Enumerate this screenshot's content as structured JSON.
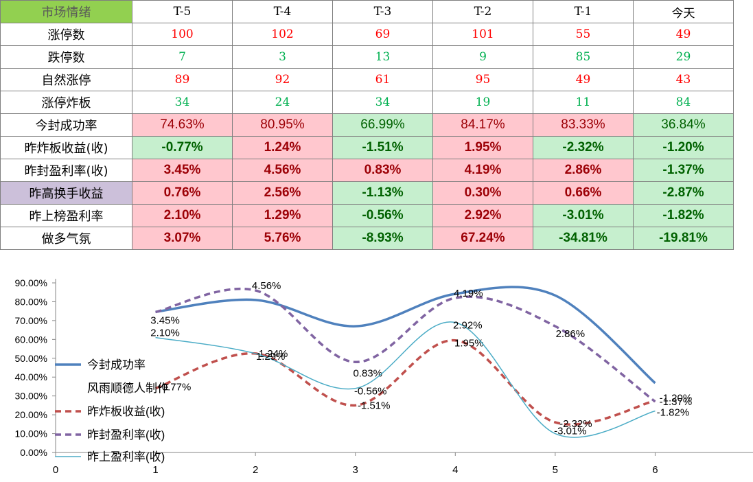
{
  "table": {
    "header": [
      "市场情绪",
      "T-5",
      "T-4",
      "T-3",
      "T-2",
      "T-1",
      "今天"
    ],
    "rows": [
      {
        "label": "涨停数",
        "values": [
          "100",
          "102",
          "69",
          "101",
          "55",
          "49"
        ]
      },
      {
        "label": "跌停数",
        "values": [
          "7",
          "3",
          "13",
          "9",
          "85",
          "29"
        ]
      },
      {
        "label": "自然涨停",
        "values": [
          "89",
          "92",
          "61",
          "95",
          "49",
          "43"
        ]
      },
      {
        "label": "涨停炸板",
        "values": [
          "34",
          "24",
          "34",
          "19",
          "11",
          "84"
        ]
      },
      {
        "label": "今封成功率",
        "values": [
          "74.63%",
          "80.95%",
          "66.99%",
          "84.17%",
          "83.33%",
          "36.84%"
        ]
      },
      {
        "label": "昨炸板收益(收)",
        "values": [
          "-0.77%",
          "1.24%",
          "-1.51%",
          "1.95%",
          "-2.32%",
          "-1.20%"
        ]
      },
      {
        "label": "昨封盈利率(收)",
        "values": [
          "3.45%",
          "4.56%",
          "0.83%",
          "4.19%",
          "2.86%",
          "-1.37%"
        ]
      },
      {
        "label": "昨高换手收益",
        "values": [
          "0.76%",
          "2.56%",
          "-1.13%",
          "0.30%",
          "0.66%",
          "-2.87%"
        ]
      },
      {
        "label": "昨上榜盈利率",
        "values": [
          "2.10%",
          "1.29%",
          "-0.56%",
          "2.92%",
          "-3.01%",
          "-1.82%"
        ]
      },
      {
        "label": "做多气氛",
        "values": [
          "3.07%",
          "5.76%",
          "-8.93%",
          "67.24%",
          "-34.81%",
          "-19.81%"
        ]
      }
    ],
    "watermark": "风雨顺德人"
  },
  "colors": {
    "header_green": "#92d050",
    "header_purple": "#ccc0da",
    "red_text": "#ff0000",
    "green_text": "#00b050",
    "pink_fill": "#ffc7ce",
    "pink_text": "#9c0006",
    "green_fill": "#c6efce",
    "green_fill_text": "#006100",
    "series_success": "#4f81bd",
    "series_blast": "#c0504d",
    "series_seal": "#8064a2",
    "series_board": "#4bacc6"
  },
  "chart_data": {
    "type": "line",
    "x_ticks": [
      "0",
      "1",
      "2",
      "3",
      "4",
      "5",
      "6"
    ],
    "y_ticks": [
      "0.00%",
      "10.00%",
      "20.00%",
      "30.00%",
      "40.00%",
      "50.00%",
      "60.00%",
      "70.00%",
      "80.00%",
      "90.00%"
    ],
    "xlim": [
      0,
      7
    ],
    "ylim": [
      0,
      90
    ],
    "x": [
      1,
      2,
      3,
      4,
      5,
      6
    ],
    "series": [
      {
        "name": "今封成功率",
        "y": [
          74.63,
          80.95,
          66.99,
          84.17,
          83.33,
          36.84
        ],
        "labels": [],
        "style": "solid-thick",
        "color": "#4f81bd"
      },
      {
        "name": "昨炸板收益(收)",
        "y": [
          34,
          52.5,
          25,
          59.5,
          16,
          27.5
        ],
        "labels": [
          "-0.77%",
          "1.24%",
          "-1.51%",
          "1.95%",
          "-2.32%",
          "-1.20%"
        ],
        "style": "dashed",
        "color": "#c0504d"
      },
      {
        "name": "昨封盈利率(收)",
        "y": [
          74.5,
          86,
          48,
          82,
          67,
          27
        ],
        "labels": [
          "3.45%",
          "4.56%",
          "0.83%",
          "4.19%",
          "2.86%",
          "-1.37%"
        ],
        "style": "dashed",
        "color": "#8064a2"
      },
      {
        "name": "昨上盈利率(收)",
        "y": [
          61,
          52.5,
          34,
          69,
          10,
          22
        ],
        "labels": [
          "2.10%",
          "1.29%",
          "-0.56%",
          "2.92%",
          "-3.01%",
          "-1.82%"
        ],
        "style": "solid-thin",
        "color": "#4bacc6"
      }
    ],
    "legend_extra": "风雨顺德人制作",
    "legend_position": "left-middle"
  }
}
